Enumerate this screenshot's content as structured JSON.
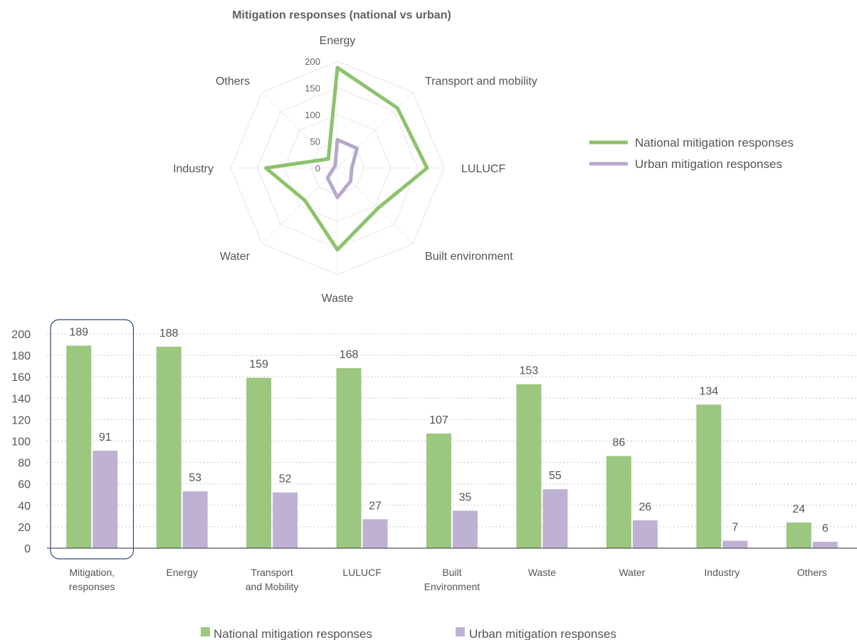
{
  "chart_data": [
    {
      "type": "radar",
      "title": "Mitigation responses (national vs urban)",
      "categories": [
        "Energy",
        "Transport and mobility",
        "LULUCF",
        "Built environment",
        "Waste",
        "Water",
        "Industry",
        "Others"
      ],
      "rlim": [
        0,
        200
      ],
      "ticks": [
        "0",
        "50",
        "100",
        "150",
        "200"
      ],
      "tick_values": [
        0,
        50,
        100,
        150,
        200
      ],
      "series": [
        {
          "name": "National mitigation responses",
          "values": [
            188,
            159,
            168,
            107,
            153,
            86,
            134,
            24
          ],
          "color": "#8dc26d"
        },
        {
          "name": "Urban mitigation responses",
          "values": [
            53,
            52,
            27,
            35,
            55,
            26,
            7,
            6
          ],
          "color": "#b7a8cc"
        }
      ],
      "legend_position": "right"
    },
    {
      "type": "bar",
      "categories": [
        [
          "Mitigation,",
          "responses"
        ],
        [
          "Energy"
        ],
        [
          "Transport",
          "and Mobility"
        ],
        [
          "LULUCF"
        ],
        [
          "Built",
          "Environment"
        ],
        [
          "Waste"
        ],
        [
          "Water"
        ],
        [
          "Industry"
        ],
        [
          "Others"
        ]
      ],
      "ylim": [
        0,
        200
      ],
      "yticks": [
        "0",
        "20",
        "40",
        "60",
        "80",
        "100",
        "120",
        "140",
        "160",
        "180",
        "200"
      ],
      "ytick_values": [
        0,
        20,
        40,
        60,
        80,
        100,
        120,
        140,
        160,
        180,
        200
      ],
      "series": [
        {
          "name": "National mitigation responses",
          "values": [
            189,
            188,
            159,
            168,
            107,
            153,
            86,
            134,
            24
          ],
          "labels": [
            "189",
            "188",
            "159",
            "168",
            "107",
            "153",
            "86",
            "134",
            "24"
          ],
          "color": "#9bc77f"
        },
        {
          "name": "Urban mitigation responses",
          "values": [
            91,
            53,
            52,
            27,
            35,
            55,
            26,
            7,
            6
          ],
          "labels": [
            "91",
            "53",
            "52",
            "27",
            "35",
            "55",
            "26",
            "7",
            "6"
          ],
          "color": "#bfb1d4"
        }
      ],
      "grid": true,
      "highlighted_category": 0,
      "legend_position": "bottom"
    }
  ]
}
